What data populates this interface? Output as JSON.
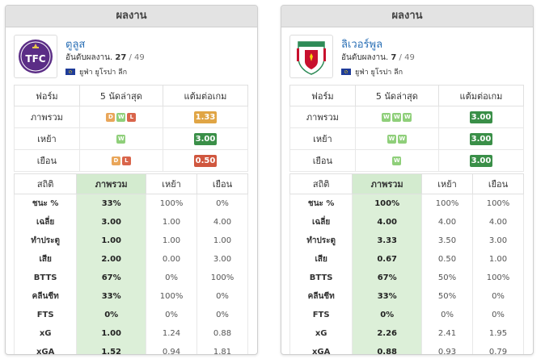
{
  "panels": [
    {
      "header": "ผลงาน",
      "team": {
        "name": "ตูลูส",
        "rank_label": "อันดับผลงาน.",
        "rank": "27",
        "rank_total": "/ 49",
        "league": "ยูฟ่า ยูโรปา ลีก",
        "logo_icon": "toulouse-logo",
        "logo_text": "TFC"
      },
      "form_headers": [
        "ฟอร์ม",
        "5 นัดล่าสุด",
        "แต้มต่อเกม"
      ],
      "form_rows": [
        {
          "label": "ภาพรวม",
          "results": [
            "D",
            "W",
            "L"
          ],
          "ppg": "1.33",
          "ppg_color": "#e0a545"
        },
        {
          "label": "เหย้า",
          "results": [
            "W"
          ],
          "ppg": "3.00",
          "ppg_color": "#3a8f48"
        },
        {
          "label": "เยือน",
          "results": [
            "D",
            "L"
          ],
          "ppg": "0.50",
          "ppg_color": "#d0573f"
        }
      ],
      "stats_headers": [
        "สถิติ",
        "ภาพรวม",
        "เหย้า",
        "เยือน"
      ],
      "stats_rows": [
        {
          "label": "ชนะ %",
          "overall": "33%",
          "home": "100%",
          "away": "0%"
        },
        {
          "label": "เฉลี่ย",
          "overall": "3.00",
          "home": "1.00",
          "away": "4.00"
        },
        {
          "label": "ทำประตู",
          "overall": "1.00",
          "home": "1.00",
          "away": "1.00"
        },
        {
          "label": "เสีย",
          "overall": "2.00",
          "home": "0.00",
          "away": "3.00"
        },
        {
          "label": "BTTS",
          "overall": "67%",
          "home": "0%",
          "away": "100%"
        },
        {
          "label": "คลีนชีท",
          "overall": "33%",
          "home": "100%",
          "away": "0%"
        },
        {
          "label": "FTS",
          "overall": "0%",
          "home": "0%",
          "away": "0%"
        },
        {
          "label": "xG",
          "overall": "1.00",
          "home": "1.24",
          "away": "0.88"
        },
        {
          "label": "xGA",
          "overall": "1.52",
          "home": "0.94",
          "away": "1.81"
        }
      ]
    },
    {
      "header": "ผลงาน",
      "team": {
        "name": "ลิเวอร์พูล",
        "rank_label": "อันดับผลงาน.",
        "rank": "7",
        "rank_total": "/ 49",
        "league": "ยูฟ่า ยูโรปา ลีก",
        "logo_icon": "liverpool-logo",
        "logo_text": ""
      },
      "form_headers": [
        "ฟอร์ม",
        "5 นัดล่าสุด",
        "แต้มต่อเกม"
      ],
      "form_rows": [
        {
          "label": "ภาพรวม",
          "results": [
            "W",
            "W",
            "W"
          ],
          "ppg": "3.00",
          "ppg_color": "#3a8f48"
        },
        {
          "label": "เหย้า",
          "results": [
            "W",
            "W"
          ],
          "ppg": "3.00",
          "ppg_color": "#3a8f48"
        },
        {
          "label": "เยือน",
          "results": [
            "W"
          ],
          "ppg": "3.00",
          "ppg_color": "#3a8f48"
        }
      ],
      "stats_headers": [
        "สถิติ",
        "ภาพรวม",
        "เหย้า",
        "เยือน"
      ],
      "stats_rows": [
        {
          "label": "ชนะ %",
          "overall": "100%",
          "home": "100%",
          "away": "100%"
        },
        {
          "label": "เฉลี่ย",
          "overall": "4.00",
          "home": "4.00",
          "away": "4.00"
        },
        {
          "label": "ทำประตู",
          "overall": "3.33",
          "home": "3.50",
          "away": "3.00"
        },
        {
          "label": "เสีย",
          "overall": "0.67",
          "home": "0.50",
          "away": "1.00"
        },
        {
          "label": "BTTS",
          "overall": "67%",
          "home": "50%",
          "away": "100%"
        },
        {
          "label": "คลีนชีท",
          "overall": "33%",
          "home": "50%",
          "away": "0%"
        },
        {
          "label": "FTS",
          "overall": "0%",
          "home": "0%",
          "away": "0%"
        },
        {
          "label": "xG",
          "overall": "2.26",
          "home": "2.41",
          "away": "1.95"
        },
        {
          "label": "xGA",
          "overall": "0.88",
          "home": "0.93",
          "away": "0.79"
        }
      ]
    }
  ]
}
